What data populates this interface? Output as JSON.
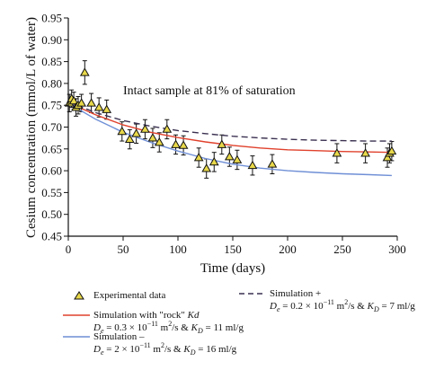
{
  "chart_data": {
    "type": "scatter",
    "title": "",
    "annotation": "Intact sample at 81% of saturation",
    "xlabel": "Time (days)",
    "ylabel": "Cesium concentration (mmol/L of water)",
    "xlim": [
      0,
      300
    ],
    "ylim": [
      0.45,
      0.95
    ],
    "x_ticks": [
      "0",
      "50",
      "100",
      "150",
      "200",
      "250",
      "300"
    ],
    "y_ticks": [
      "0.45",
      "0.50",
      "0.55",
      "0.60",
      "0.65",
      "0.70",
      "0.75",
      "0.80",
      "0.85",
      "0.90",
      "0.95"
    ],
    "grid": false,
    "legend_position": "bottom",
    "series": [
      {
        "name": "Experimental data",
        "kind": "scatter",
        "color": "#e8d84a",
        "points": [
          {
            "x": 1,
            "y": 0.755,
            "err": 0.02
          },
          {
            "x": 3,
            "y": 0.765,
            "err": 0.02
          },
          {
            "x": 5,
            "y": 0.76,
            "err": 0.02
          },
          {
            "x": 7,
            "y": 0.745,
            "err": 0.02
          },
          {
            "x": 9,
            "y": 0.75,
            "err": 0.02
          },
          {
            "x": 12,
            "y": 0.755,
            "err": 0.02
          },
          {
            "x": 15,
            "y": 0.825,
            "err": 0.027
          },
          {
            "x": 21,
            "y": 0.755,
            "err": 0.022
          },
          {
            "x": 28,
            "y": 0.745,
            "err": 0.022
          },
          {
            "x": 35,
            "y": 0.74,
            "err": 0.022
          },
          {
            "x": 49,
            "y": 0.69,
            "err": 0.022
          },
          {
            "x": 56,
            "y": 0.672,
            "err": 0.022
          },
          {
            "x": 62,
            "y": 0.685,
            "err": 0.022
          },
          {
            "x": 70,
            "y": 0.695,
            "err": 0.022
          },
          {
            "x": 77,
            "y": 0.675,
            "err": 0.022
          },
          {
            "x": 83,
            "y": 0.665,
            "err": 0.022
          },
          {
            "x": 90,
            "y": 0.695,
            "err": 0.022
          },
          {
            "x": 98,
            "y": 0.66,
            "err": 0.022
          },
          {
            "x": 105,
            "y": 0.658,
            "err": 0.022
          },
          {
            "x": 119,
            "y": 0.63,
            "err": 0.022
          },
          {
            "x": 126,
            "y": 0.605,
            "err": 0.022
          },
          {
            "x": 133,
            "y": 0.62,
            "err": 0.022
          },
          {
            "x": 140,
            "y": 0.66,
            "err": 0.022
          },
          {
            "x": 147,
            "y": 0.632,
            "err": 0.022
          },
          {
            "x": 154,
            "y": 0.625,
            "err": 0.022
          },
          {
            "x": 168,
            "y": 0.612,
            "err": 0.022
          },
          {
            "x": 186,
            "y": 0.615,
            "err": 0.022
          },
          {
            "x": 245,
            "y": 0.64,
            "err": 0.022
          },
          {
            "x": 271,
            "y": 0.64,
            "err": 0.022
          },
          {
            "x": 291,
            "y": 0.63,
            "err": 0.022
          },
          {
            "x": 293,
            "y": 0.64,
            "err": 0.022
          },
          {
            "x": 295,
            "y": 0.645,
            "err": 0.022
          }
        ]
      },
      {
        "name": "Simulation with \"rock\" Kd",
        "detail": "De = 0.3 × 10⁻¹¹ m²/s & KD = 11 ml/g",
        "kind": "line",
        "color": "#e0412c",
        "dash": "solid",
        "points": [
          [
            0,
            0.76
          ],
          [
            10,
            0.745
          ],
          [
            25,
            0.728
          ],
          [
            50,
            0.705
          ],
          [
            75,
            0.688
          ],
          [
            100,
            0.676
          ],
          [
            125,
            0.666
          ],
          [
            150,
            0.658
          ],
          [
            175,
            0.652
          ],
          [
            200,
            0.648
          ],
          [
            225,
            0.646
          ],
          [
            250,
            0.644
          ],
          [
            275,
            0.643
          ],
          [
            295,
            0.642
          ]
        ]
      },
      {
        "name": "Simulation –",
        "detail": "De = 2 × 10⁻¹¹ m²/s & KD = 16 ml/g",
        "kind": "line",
        "color": "#6f8fd6",
        "dash": "solid",
        "points": [
          [
            0,
            0.76
          ],
          [
            10,
            0.74
          ],
          [
            25,
            0.718
          ],
          [
            50,
            0.688
          ],
          [
            75,
            0.665
          ],
          [
            100,
            0.645
          ],
          [
            125,
            0.628
          ],
          [
            150,
            0.615
          ],
          [
            175,
            0.606
          ],
          [
            200,
            0.6
          ],
          [
            225,
            0.596
          ],
          [
            250,
            0.593
          ],
          [
            275,
            0.591
          ],
          [
            295,
            0.589
          ]
        ]
      },
      {
        "name": "Simulation +",
        "detail": "De = 0.2 × 10⁻¹¹ m²/s & KD = 7 ml/g",
        "kind": "line",
        "color": "#3a3050",
        "dash": "dashed",
        "points": [
          [
            0,
            0.76
          ],
          [
            10,
            0.748
          ],
          [
            25,
            0.733
          ],
          [
            50,
            0.715
          ],
          [
            75,
            0.702
          ],
          [
            100,
            0.692
          ],
          [
            125,
            0.685
          ],
          [
            150,
            0.679
          ],
          [
            175,
            0.675
          ],
          [
            200,
            0.672
          ],
          [
            225,
            0.67
          ],
          [
            250,
            0.669
          ],
          [
            275,
            0.668
          ],
          [
            295,
            0.668
          ]
        ]
      }
    ]
  },
  "legend": {
    "experimental": "Experimental data",
    "rock_line1": "Simulation with \"rock\" ",
    "rock_kd": "Kd",
    "rock_line2_prefix": "D",
    "rock_line2_sub": "e",
    "rock_line2_a": " = 0.3 × 10",
    "rock_line2_exp": "−11",
    "rock_line2_b": " m",
    "rock_line2_sq": "2",
    "rock_line2_c": "/s & ",
    "rock_line2_k": "K",
    "rock_line2_ksub": "D",
    "rock_line2_d": " = 11 ml/g",
    "minus_line1": "Simulation –",
    "minus_line2_prefix": "D",
    "minus_line2_sub": "e",
    "minus_line2_a": " = 2 × 10",
    "minus_line2_exp": "−11",
    "minus_line2_b": " m",
    "minus_line2_sq": "2",
    "minus_line2_c": "/s & ",
    "minus_line2_k": "K",
    "minus_line2_ksub": "D",
    "minus_line2_d": " = 16 ml/g",
    "plus_line1": "Simulation +",
    "plus_line2_prefix": "D",
    "plus_line2_sub": "e",
    "plus_line2_a": " = 0.2 × 10",
    "plus_line2_exp": "−11",
    "plus_line2_b": " m",
    "plus_line2_sq": "2",
    "plus_line2_c": "/s & ",
    "plus_line2_k": "K",
    "plus_line2_ksub": "D",
    "plus_line2_d": " = 7 ml/g"
  }
}
